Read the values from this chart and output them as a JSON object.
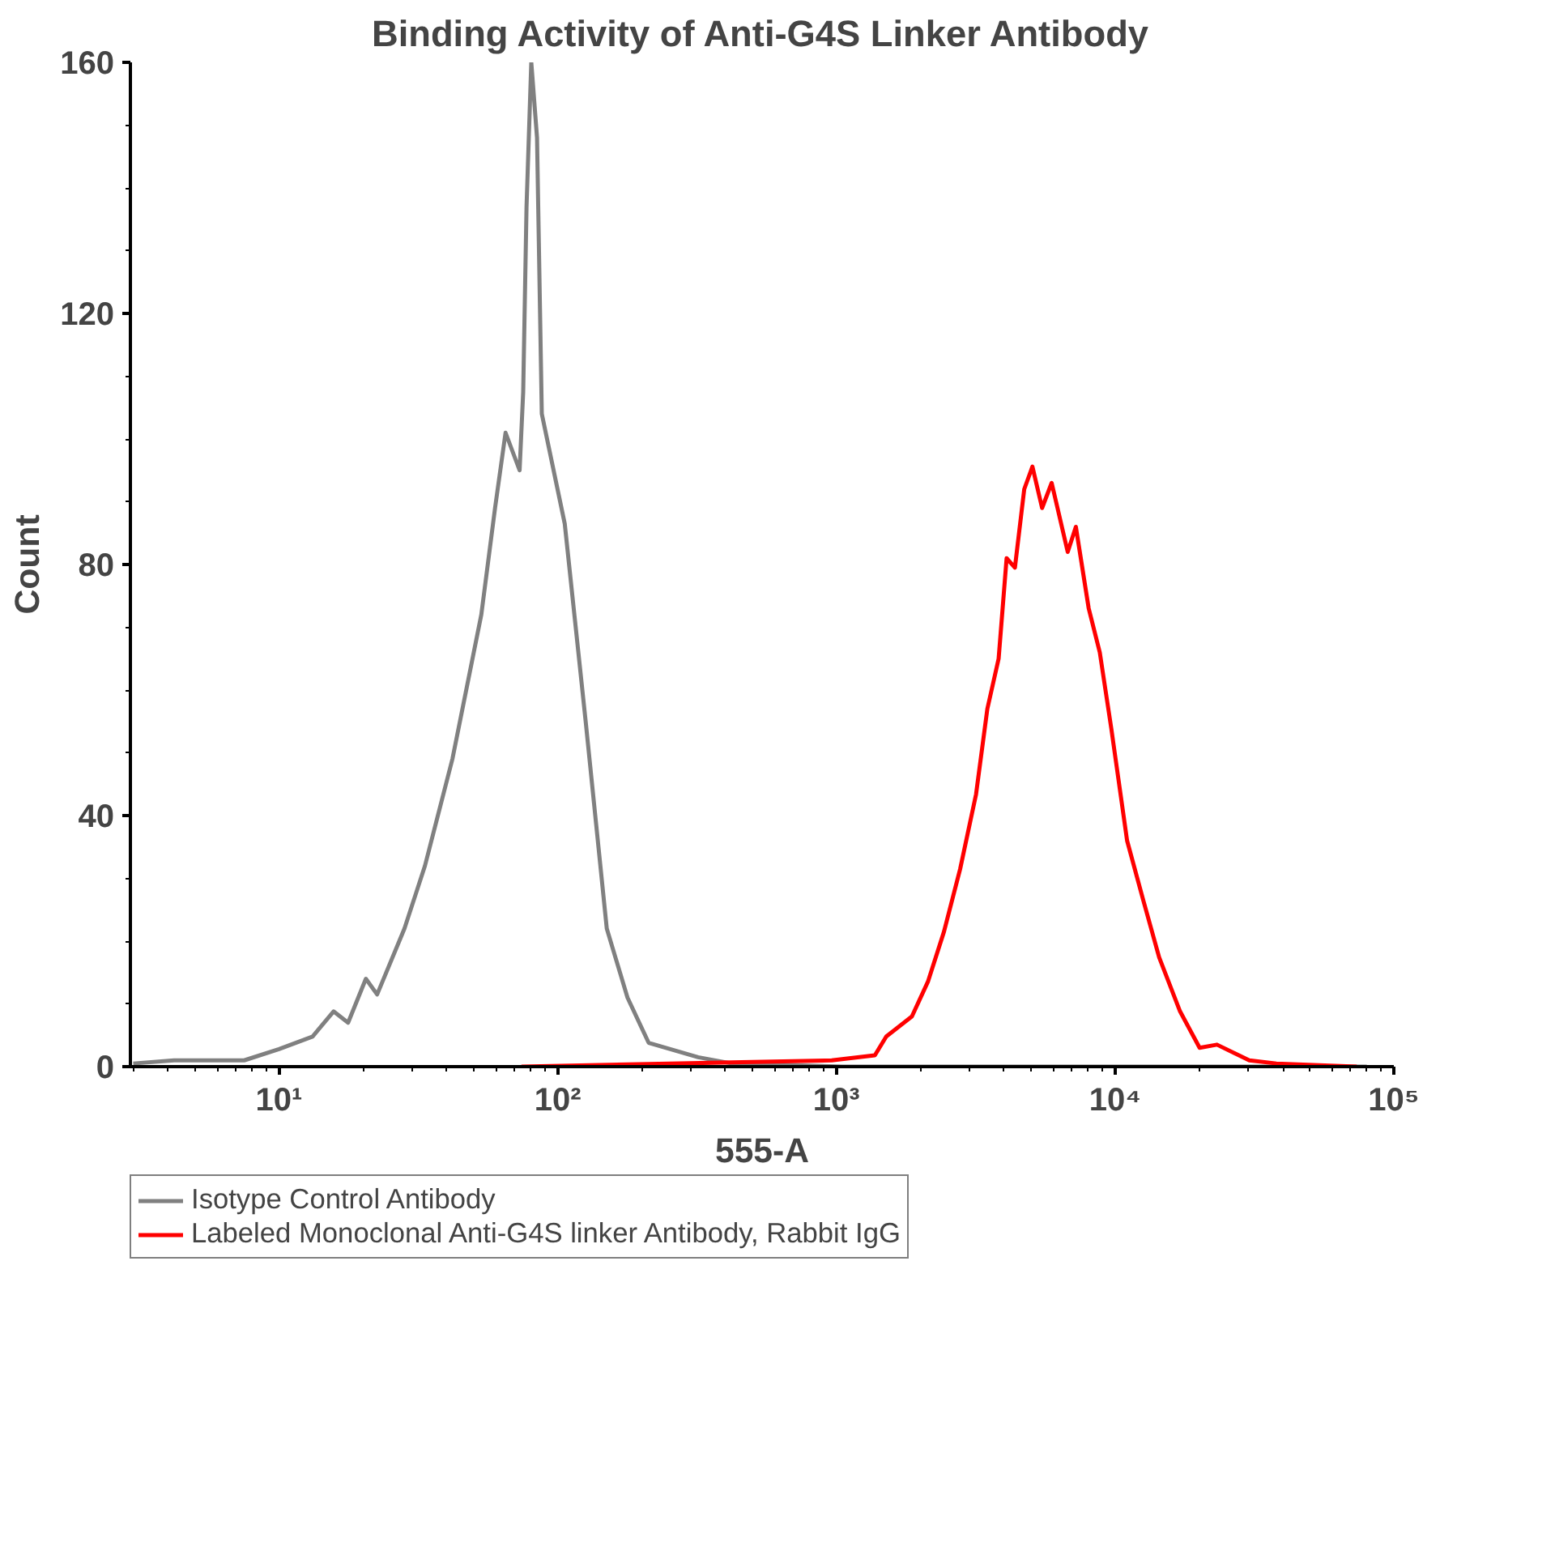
{
  "chart_data": {
    "type": "line",
    "title": "Binding Activity of Anti-G4S Linker Antibody",
    "xlabel": "555-A",
    "ylabel": "Count",
    "log": "x",
    "xlim": [
      2.93,
      100000
    ],
    "ylim": [
      0,
      160
    ],
    "xticks": [
      {
        "value": 10,
        "label": "10¹"
      },
      {
        "value": 100,
        "label": "10²"
      },
      {
        "value": 1000,
        "label": "10³"
      },
      {
        "value": 10000,
        "label": "10⁴"
      },
      {
        "value": 100000,
        "label": "10⁵"
      }
    ],
    "yticks": [
      0,
      40,
      80,
      120,
      160
    ],
    "grid": false,
    "legend": "bottom",
    "marker": "none",
    "line_style": "solid",
    "series": [
      {
        "name": "Isotype Control Antibody",
        "color": "#808080",
        "x": [
          3.0,
          4.2,
          7.5,
          10,
          13.2,
          15.7,
          17.7,
          20.5,
          22.5,
          28.2,
          33.4,
          41.9,
          53.2,
          59.6,
          65,
          73,
          75.2,
          77.3,
          80.4,
          84.3,
          87.7,
          106,
          126,
          150,
          178,
          212,
          319,
          422,
          1050,
          10000,
          80000
        ],
        "values": [
          0.5,
          1,
          1,
          2.8,
          4.8,
          8.8,
          7,
          14,
          11.5,
          22,
          32,
          49,
          72,
          89,
          101,
          95,
          107.5,
          137,
          160,
          148,
          104,
          86.5,
          55,
          22,
          11,
          3.8,
          1.5,
          0.5,
          0,
          0,
          0
        ]
      },
      {
        "name": "Labeled Monoclonal Anti-G4S linker Antibody, Rabbit IgG",
        "color": "#ff0000",
        "x": [
          74.1,
          962,
          1374,
          1510,
          1866,
          2133,
          2432,
          2780,
          3170,
          3480,
          3820,
          4080,
          4370,
          4720,
          5050,
          5470,
          5920,
          6760,
          7230,
          8040,
          8810,
          9680,
          11040,
          12620,
          14390,
          17100,
          20100,
          23200,
          30300,
          37900,
          73600
        ],
        "values": [
          0,
          1,
          1.8,
          4.8,
          8,
          13.6,
          21.5,
          31.5,
          43.4,
          57,
          65,
          81,
          79.5,
          92,
          95.6,
          89,
          93,
          82,
          86,
          73,
          66,
          54,
          36,
          26.5,
          17.4,
          8.8,
          3,
          3.5,
          1,
          0.5,
          0
        ]
      }
    ]
  }
}
